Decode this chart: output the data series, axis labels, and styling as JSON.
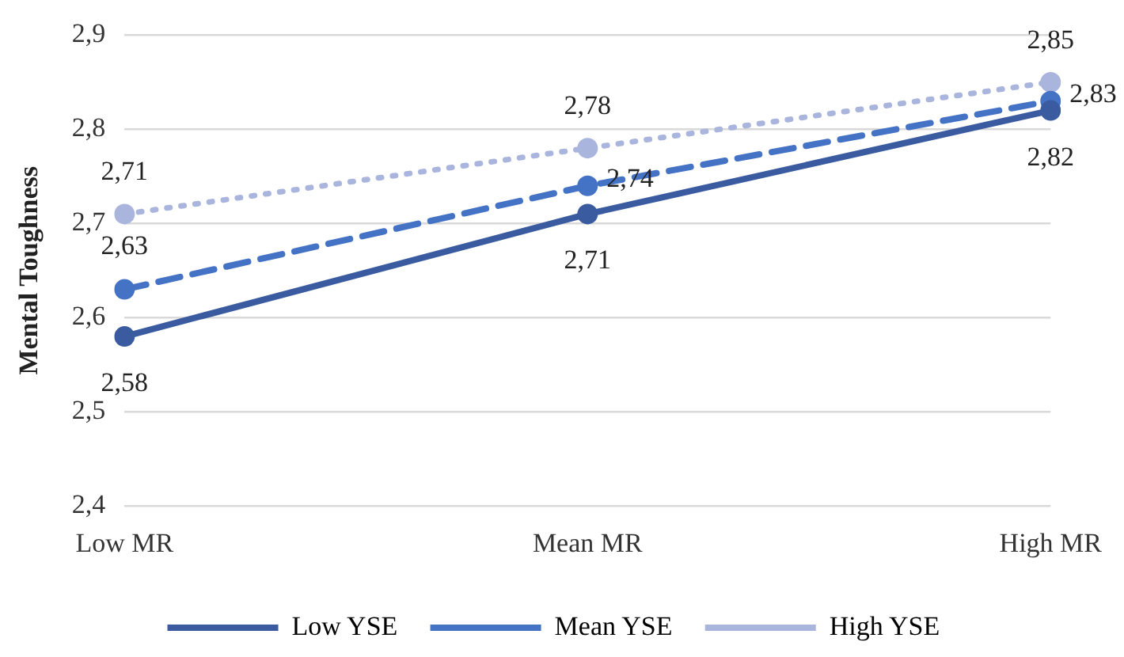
{
  "chart_data": {
    "type": "line",
    "ylabel": "Mental Toughness",
    "categories": [
      "Low MR",
      "Mean MR",
      "High MR"
    ],
    "series": [
      {
        "name": "Low YSE",
        "color": "#3a5ba0",
        "line_style": "solid",
        "values": [
          2.58,
          2.71,
          2.82
        ],
        "value_labels": [
          "2,58",
          "2,71",
          "2,82"
        ]
      },
      {
        "name": "Mean YSE",
        "color": "#4472c4",
        "line_style": "dashed",
        "values": [
          2.63,
          2.74,
          2.83
        ],
        "value_labels": [
          "2,63",
          "2,74",
          "2,83"
        ]
      },
      {
        "name": "High YSE",
        "color": "#a9b5dc",
        "line_style": "dotted",
        "values": [
          2.71,
          2.78,
          2.85
        ],
        "value_labels": [
          "2,71",
          "2,78",
          "2,85"
        ]
      }
    ],
    "ylim": [
      2.4,
      2.9
    ],
    "yticks": [
      {
        "value": 2.4,
        "label": "2,4"
      },
      {
        "value": 2.5,
        "label": "2,5"
      },
      {
        "value": 2.6,
        "label": "2,6"
      },
      {
        "value": 2.7,
        "label": "2,7"
      },
      {
        "value": 2.8,
        "label": "2,8"
      },
      {
        "value": 2.9,
        "label": "2,9"
      }
    ],
    "grid": "y",
    "legend": "bottom",
    "marker": "circle"
  }
}
